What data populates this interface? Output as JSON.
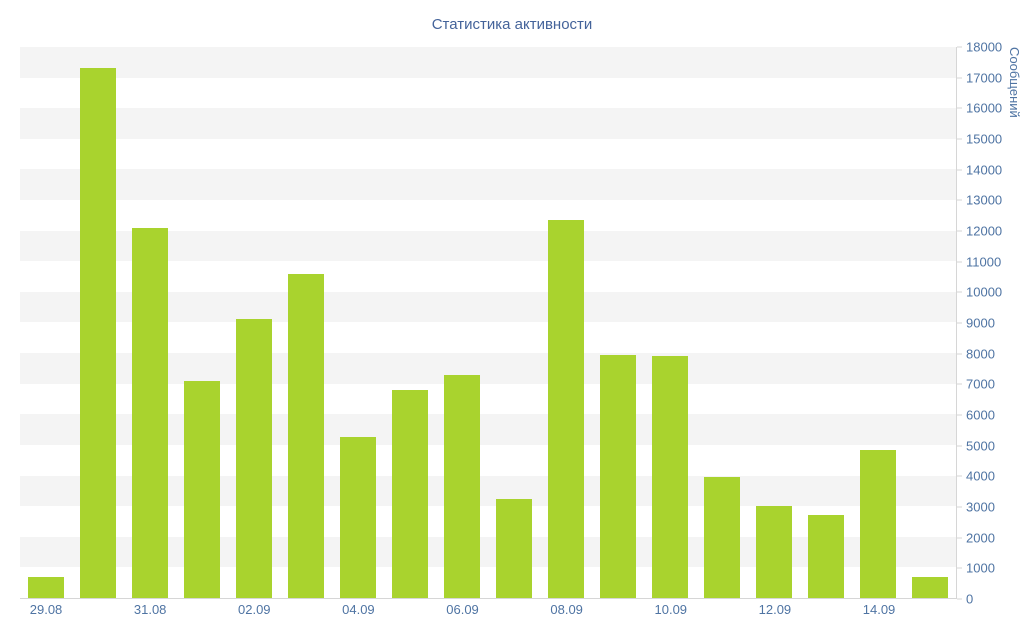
{
  "chart_data": {
    "type": "bar",
    "title": "Статистика активности",
    "xlabel": "",
    "ylabel": "Сообщений",
    "ylim": [
      0,
      18000
    ],
    "ytick_step": 1000,
    "ytick_labels": [
      "0",
      "1000",
      "2000",
      "3000",
      "4000",
      "5000",
      "6000",
      "7000",
      "8000",
      "9000",
      "10000",
      "11000",
      "12000",
      "13000",
      "14000",
      "15000",
      "16000",
      "17000",
      "18000"
    ],
    "x_labels": [
      "29.08",
      "31.08",
      "02.09",
      "04.09",
      "06.09",
      "08.09",
      "10.09",
      "12.09",
      "14.09"
    ],
    "x_label_every": 2,
    "values": [
      700,
      17300,
      12100,
      7100,
      9100,
      10600,
      5250,
      6800,
      7300,
      3250,
      12350,
      7950,
      7900,
      3950,
      3000,
      2700,
      4850,
      700
    ],
    "bar_color": "#a9d32e",
    "title_color": "#44639a",
    "axis_label_color": "#4f74a3",
    "stripe_color": "#f4f4f4",
    "axis_line_color": "#d6d6d6",
    "grid": "horizontal-stripes",
    "legend_position": "none",
    "y_axis_position": "right"
  }
}
